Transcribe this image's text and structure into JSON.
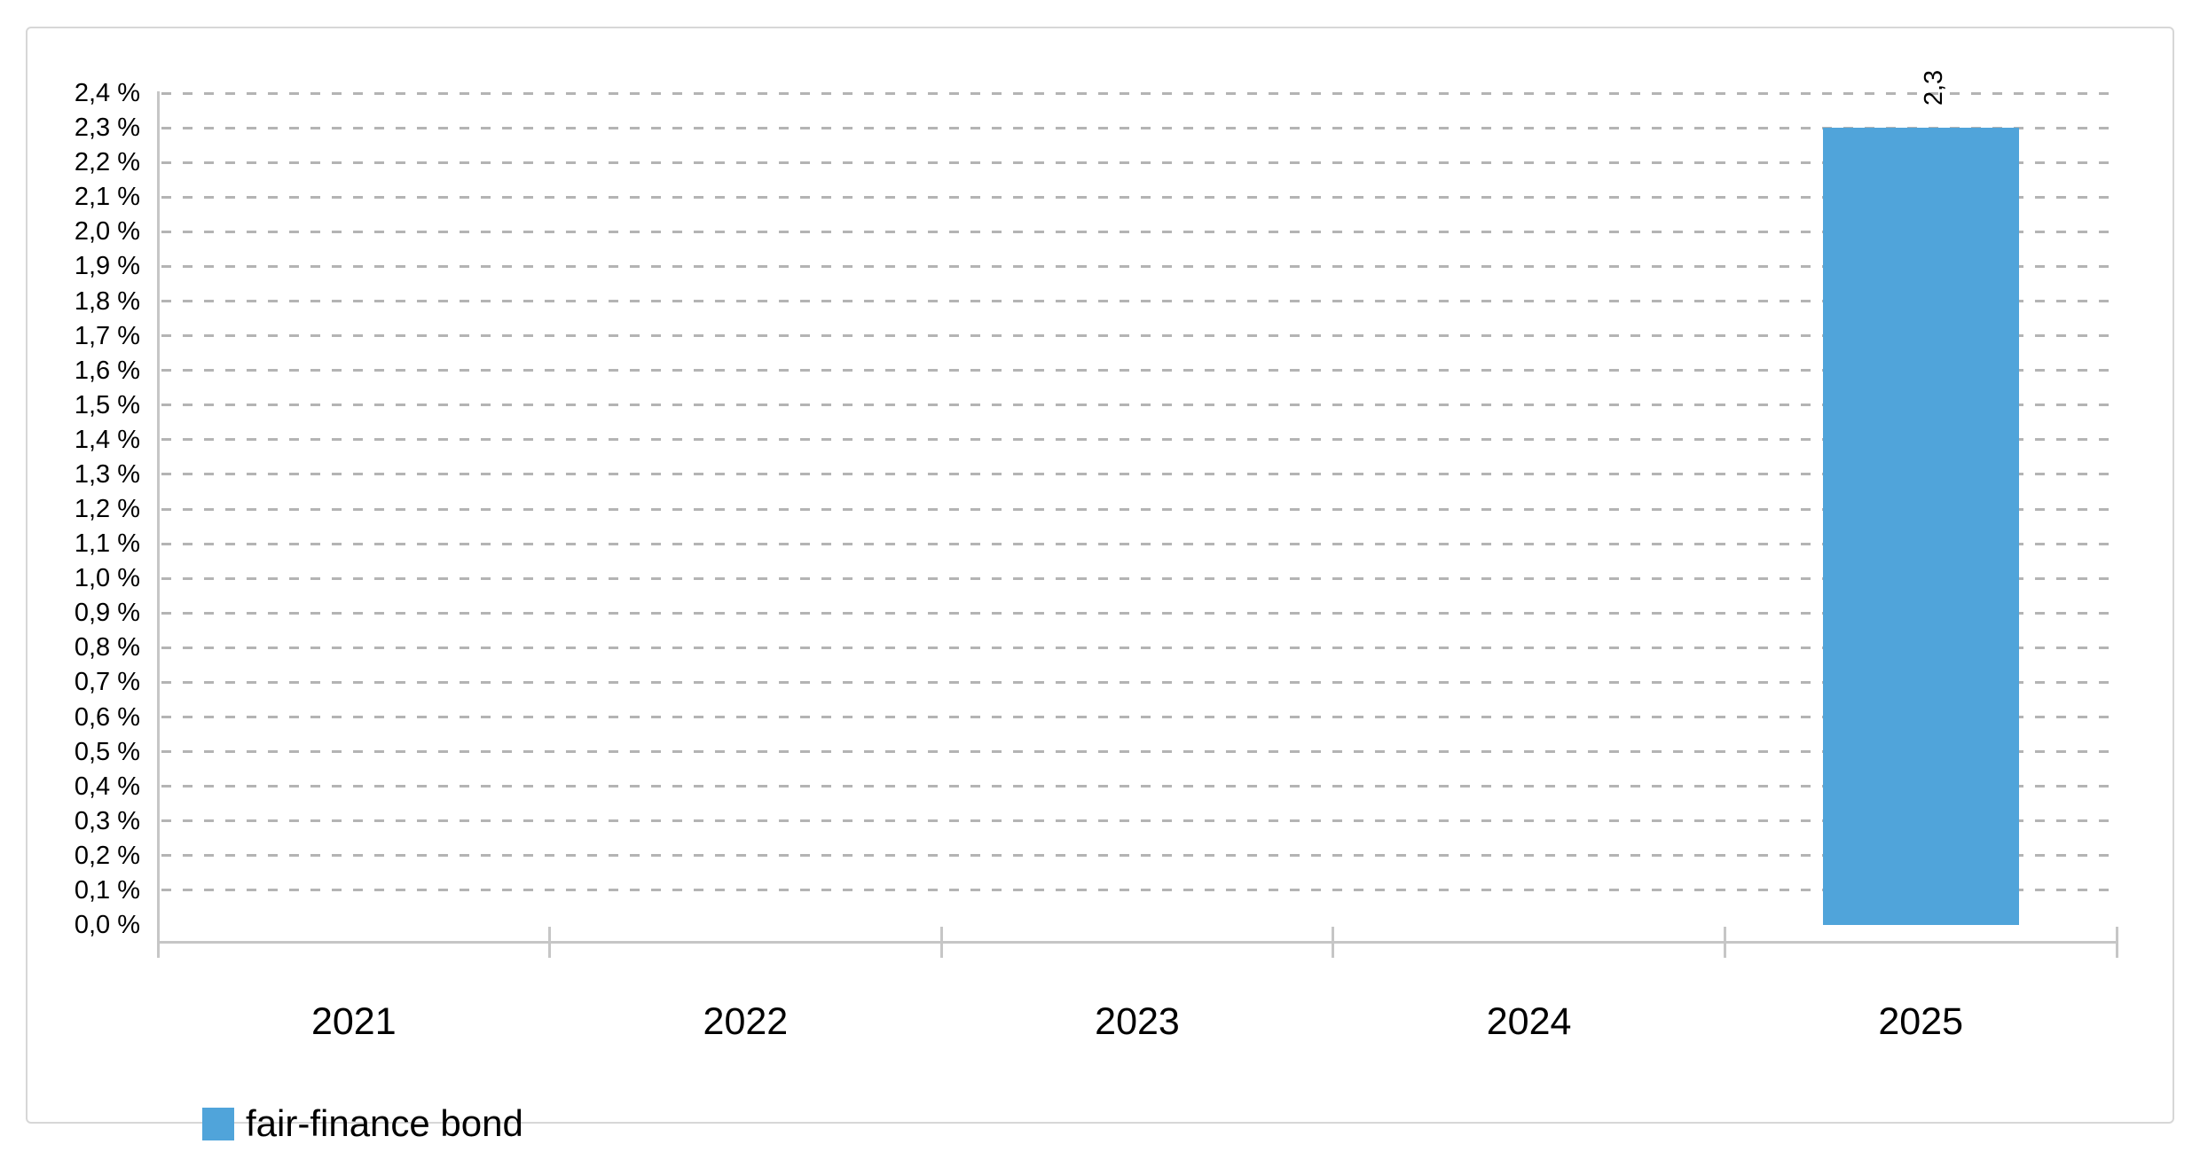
{
  "chart_data": {
    "type": "bar",
    "title": "",
    "xlabel": "",
    "ylabel": "",
    "categories": [
      "2021",
      "2022",
      "2023",
      "2024",
      "2025"
    ],
    "series": [
      {
        "name": "fair-finance bond",
        "color": "#50a4da",
        "values": [
          null,
          null,
          null,
          null,
          2.3
        ],
        "data_labels": [
          null,
          null,
          null,
          null,
          "2,3"
        ]
      }
    ],
    "ylim": [
      0,
      2.4
    ],
    "ytick_step": 0.1,
    "ytick_labels": [
      "0,0 %",
      "0,1 %",
      "0,2 %",
      "0,3 %",
      "0,4 %",
      "0,5 %",
      "0,6 %",
      "0,7 %",
      "0,8 %",
      "0,9 %",
      "1,0 %",
      "1,1 %",
      "1,2 %",
      "1,3 %",
      "1,4 %",
      "1,5 %",
      "1,6 %",
      "1,7 %",
      "1,8 %",
      "1,9 %",
      "2,0 %",
      "2,1 %",
      "2,2 %",
      "2,3 %",
      "2,4 %"
    ],
    "grid": "horizontal-dashed",
    "grid_on": true,
    "legend_position": "bottom-left",
    "legend": [
      {
        "label": "fair-finance bond",
        "color": "#50a4da"
      }
    ],
    "data_label_rotation_deg": -90,
    "decimal_separator": ","
  },
  "colors": {
    "bar": "#50a4da",
    "gridline": "#b4b4b4",
    "axis": "#c6c6c6",
    "panel_border": "#d7d7d7",
    "text": "#000000",
    "background": "#ffffff"
  }
}
